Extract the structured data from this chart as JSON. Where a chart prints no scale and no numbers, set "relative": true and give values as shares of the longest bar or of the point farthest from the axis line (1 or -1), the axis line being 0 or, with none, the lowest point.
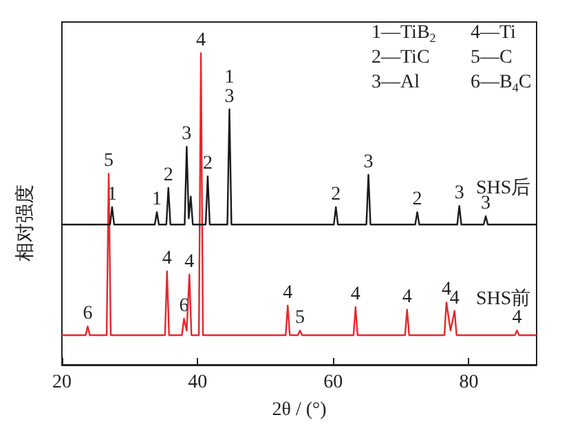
{
  "chart_data": {
    "type": "line",
    "relative": true,
    "xlabel": "2θ / (°)",
    "ylabel": "相对强度",
    "xlim": [
      20,
      90
    ],
    "xticks": [
      20,
      40,
      60,
      80
    ],
    "grid": false,
    "marker": "none",
    "line_style": "solid",
    "series": [
      {
        "name": "SHS后",
        "color": "#1a1a1a",
        "x": [
          20,
          27.1,
          27.4,
          27.7,
          33.7,
          34.0,
          34.3,
          35.4,
          35.7,
          36.0,
          38.1,
          38.4,
          38.7,
          39.0,
          39.3,
          41.2,
          41.5,
          41.8,
          44.4,
          44.7,
          45.0,
          60.1,
          60.4,
          60.7,
          64.9,
          65.2,
          65.5,
          72.1,
          72.4,
          72.7,
          78.3,
          78.6,
          78.9,
          82.2,
          82.5,
          82.8,
          90
        ],
        "values": [
          0.45,
          0.45,
          0.506,
          0.45,
          0.45,
          0.49,
          0.45,
          0.45,
          0.568,
          0.45,
          0.45,
          0.7,
          0.47,
          0.54,
          0.45,
          0.45,
          0.605,
          0.45,
          0.45,
          0.82,
          0.45,
          0.45,
          0.506,
          0.45,
          0.45,
          0.61,
          0.45,
          0.45,
          0.49,
          0.45,
          0.45,
          0.51,
          0.45,
          0.45,
          0.477,
          0.45,
          0.45
        ]
      },
      {
        "name": "SHS前",
        "color": "#e8262a",
        "x": [
          20,
          23.5,
          23.8,
          24.1,
          26.6,
          26.9,
          27.2,
          35.2,
          35.5,
          35.8,
          37.7,
          38.0,
          38.4,
          38.8,
          39.1,
          40.2,
          40.5,
          40.8,
          53.0,
          53.3,
          53.6,
          54.8,
          55.1,
          55.4,
          63.0,
          63.3,
          63.6,
          70.6,
          70.9,
          71.2,
          76.4,
          76.7,
          77.3,
          77.9,
          78.2,
          86.8,
          87.1,
          87.4,
          90
        ],
        "values": [
          0.095,
          0.095,
          0.123,
          0.095,
          0.095,
          0.613,
          0.095,
          0.095,
          0.3,
          0.095,
          0.095,
          0.148,
          0.11,
          0.29,
          0.095,
          0.095,
          1,
          0.095,
          0.095,
          0.19,
          0.095,
          0.095,
          0.11,
          0.095,
          0.095,
          0.185,
          0.095,
          0.095,
          0.177,
          0.095,
          0.095,
          0.2,
          0.11,
          0.173,
          0.095,
          0.095,
          0.11,
          0.095,
          0.095
        ]
      }
    ],
    "annotations": [
      "1—TiB$_{2}$",
      "2—TiC",
      "3—Al",
      "4—Ti",
      "5—C",
      "6—B$_{4}$C",
      {
        "text": "1",
        "x": 27.4,
        "y": 0.506
      },
      {
        "text": "1",
        "x": 34.0,
        "y": 0.49
      },
      {
        "text": "2",
        "x": 35.7,
        "y": 0.568
      },
      {
        "text": "3",
        "x": 38.4,
        "y": 0.7
      },
      {
        "text": "2",
        "x": 41.5,
        "y": 0.605
      },
      {
        "text": "1\n3",
        "x": 44.7,
        "y": 0.82
      },
      {
        "text": "2",
        "x": 60.4,
        "y": 0.506
      },
      {
        "text": "3",
        "x": 65.2,
        "y": 0.61
      },
      {
        "text": "2",
        "x": 72.4,
        "y": 0.49
      },
      {
        "text": "3",
        "x": 78.6,
        "y": 0.51
      },
      {
        "text": "3",
        "x": 82.5,
        "y": 0.477
      },
      {
        "text": "6",
        "x": 23.8,
        "y": 0.123
      },
      {
        "text": "5",
        "x": 26.9,
        "y": 0.613
      },
      {
        "text": "4",
        "x": 35.5,
        "y": 0.3
      },
      {
        "text": "6",
        "x": 38.0,
        "y": 0.148
      },
      {
        "text": "4",
        "x": 38.8,
        "y": 0.29
      },
      {
        "text": "4",
        "x": 40.5,
        "y": 1
      },
      {
        "text": "4",
        "x": 53.3,
        "y": 0.19
      },
      {
        "text": "5",
        "x": 55.1,
        "y": 0.11
      },
      {
        "text": "4",
        "x": 63.3,
        "y": 0.185
      },
      {
        "text": "4",
        "x": 70.9,
        "y": 0.177
      },
      {
        "text": "4",
        "x": 76.7,
        "y": 0.2
      },
      {
        "text": "4",
        "x": 77.9,
        "y": 0.173
      },
      {
        "text": "4",
        "x": 87.1,
        "y": 0.11
      }
    ]
  }
}
